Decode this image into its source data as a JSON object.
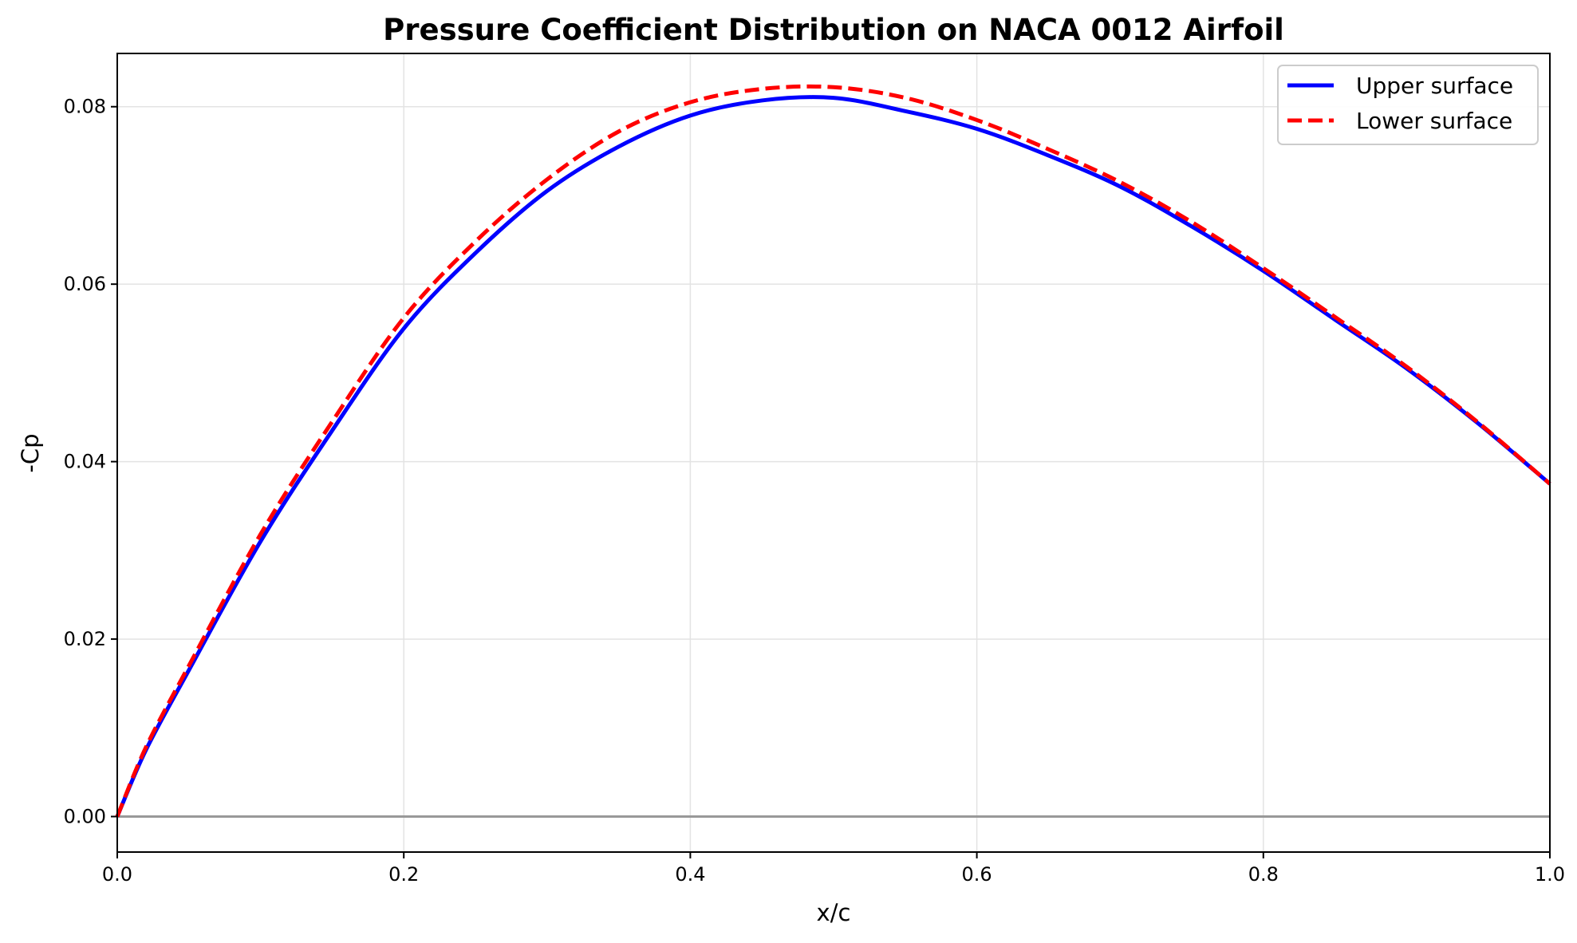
{
  "chart_data": {
    "type": "line",
    "title": "Pressure Coefficient Distribution on NACA 0012 Airfoil",
    "xlabel": "x/c",
    "ylabel": "-Cp",
    "xlim": [
      0.0,
      1.0
    ],
    "ylim": [
      -0.004,
      0.086
    ],
    "xticks": [
      "0.0",
      "0.2",
      "0.4",
      "0.6",
      "0.8",
      "1.0"
    ],
    "yticks": [
      "0.00",
      "0.02",
      "0.04",
      "0.06",
      "0.08"
    ],
    "grid": true,
    "legend_position": "top-right",
    "reference_line": {
      "y": 0.0,
      "color": "#999999"
    },
    "series": [
      {
        "name": "Upper surface",
        "color": "#0000ff",
        "style": "solid",
        "x": [
          0.0,
          0.02,
          0.05,
          0.1,
          0.15,
          0.2,
          0.25,
          0.3,
          0.35,
          0.4,
          0.45,
          0.5,
          0.55,
          0.6,
          0.65,
          0.7,
          0.75,
          0.8,
          0.85,
          0.9,
          0.95,
          1.0
        ],
        "y": [
          0.0,
          0.0075,
          0.0165,
          0.031,
          0.0435,
          0.055,
          0.0635,
          0.0705,
          0.0755,
          0.079,
          0.0807,
          0.081,
          0.0795,
          0.0775,
          0.0745,
          0.071,
          0.0665,
          0.0615,
          0.056,
          0.0505,
          0.0443,
          0.0375
        ]
      },
      {
        "name": "Lower surface",
        "color": "#ff0000",
        "style": "dashed",
        "x": [
          0.0,
          0.02,
          0.05,
          0.1,
          0.15,
          0.2,
          0.25,
          0.3,
          0.35,
          0.4,
          0.45,
          0.5,
          0.55,
          0.6,
          0.65,
          0.7,
          0.75,
          0.8,
          0.85,
          0.9,
          0.95,
          1.0
        ],
        "y": [
          0.0,
          0.0078,
          0.017,
          0.0318,
          0.0445,
          0.0562,
          0.0648,
          0.0718,
          0.0772,
          0.0805,
          0.082,
          0.0822,
          0.081,
          0.0785,
          0.0752,
          0.0715,
          0.067,
          0.0618,
          0.0563,
          0.0507,
          0.0444,
          0.0375
        ]
      }
    ]
  }
}
